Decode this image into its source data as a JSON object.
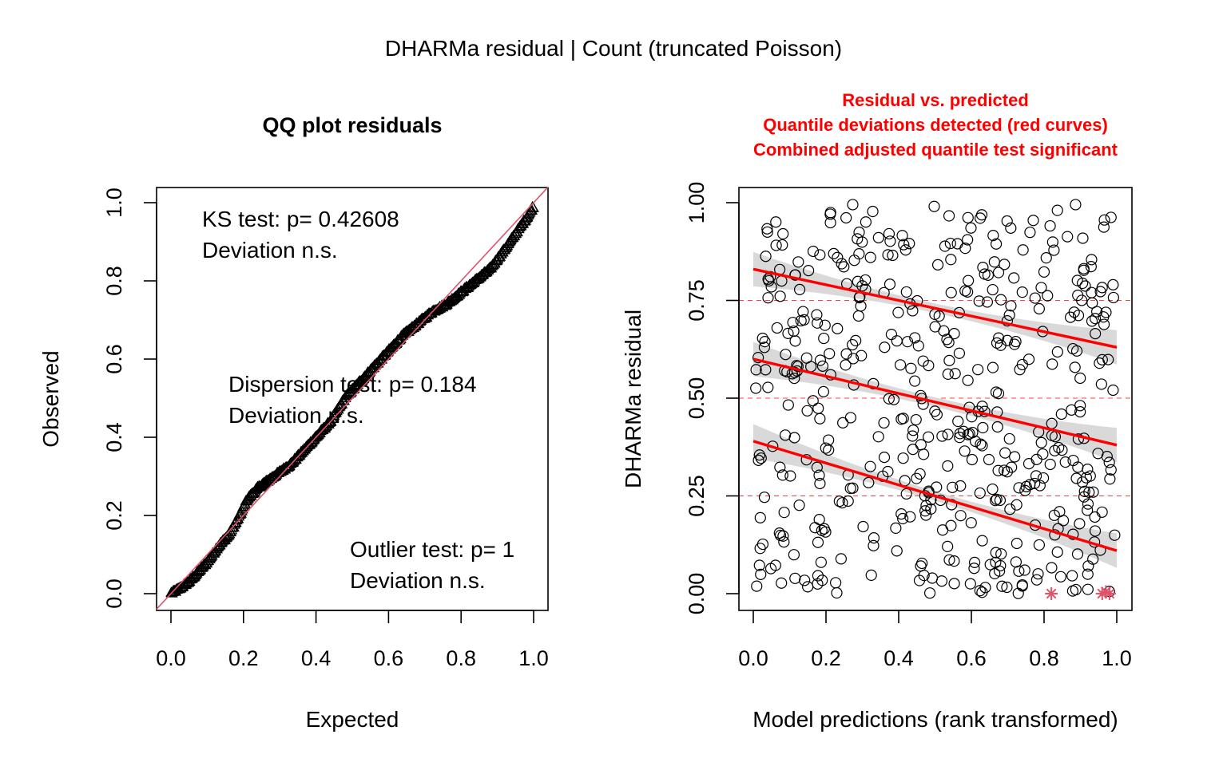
{
  "figure": {
    "title": "DHARMa residual | Count (truncated Poisson)"
  },
  "chart_data": [
    {
      "type": "scatter",
      "title": "QQ plot residuals",
      "xlabel": "Expected",
      "ylabel": "Observed",
      "xlim": [
        0,
        1
      ],
      "ylim": [
        0,
        1
      ],
      "xticks": [
        "0.0",
        "0.2",
        "0.4",
        "0.6",
        "0.8",
        "1.0"
      ],
      "yticks": [
        "0.0",
        "0.2",
        "0.4",
        "0.6",
        "0.8",
        "1.0"
      ],
      "reference_line": {
        "slope": 1,
        "intercept": 0,
        "color": "#df536b"
      },
      "point_marker": "triangle",
      "n_points": 500,
      "qq_curve": [
        [
          0.0,
          0.0
        ],
        [
          0.02,
          0.01
        ],
        [
          0.05,
          0.03
        ],
        [
          0.08,
          0.06
        ],
        [
          0.1,
          0.08
        ],
        [
          0.13,
          0.12
        ],
        [
          0.16,
          0.15
        ],
        [
          0.19,
          0.2
        ],
        [
          0.21,
          0.24
        ],
        [
          0.24,
          0.27
        ],
        [
          0.27,
          0.29
        ],
        [
          0.3,
          0.31
        ],
        [
          0.33,
          0.33
        ],
        [
          0.36,
          0.36
        ],
        [
          0.4,
          0.4
        ],
        [
          0.44,
          0.44
        ],
        [
          0.48,
          0.5
        ],
        [
          0.52,
          0.54
        ],
        [
          0.56,
          0.58
        ],
        [
          0.6,
          0.62
        ],
        [
          0.64,
          0.66
        ],
        [
          0.68,
          0.69
        ],
        [
          0.72,
          0.72
        ],
        [
          0.76,
          0.74
        ],
        [
          0.8,
          0.77
        ],
        [
          0.84,
          0.8
        ],
        [
          0.88,
          0.83
        ],
        [
          0.92,
          0.88
        ],
        [
          0.95,
          0.92
        ],
        [
          0.98,
          0.96
        ],
        [
          1.0,
          0.99
        ]
      ],
      "annotations": {
        "ks_line1": "KS test: p= 0.42608",
        "ks_line2": "Deviation  n.s.",
        "disp_line1": "Dispersion test: p= 0.184",
        "disp_line2": "Deviation  n.s.",
        "out_line1": "Outlier test: p= 1",
        "out_line2": "Deviation  n.s."
      }
    },
    {
      "type": "scatter",
      "title_lines": [
        "Residual vs. predicted",
        "Quantile deviations detected (red curves)",
        "Combined adjusted quantile test significant"
      ],
      "title_color": "#ff0000",
      "xlabel": "Model predictions (rank transformed)",
      "ylabel": "DHARMa residual",
      "xlim": [
        0,
        1
      ],
      "ylim": [
        0,
        1
      ],
      "xticks": [
        "0.0",
        "0.2",
        "0.4",
        "0.6",
        "0.8",
        "1.0"
      ],
      "yticks": [
        "0.00",
        "0.25",
        "0.50",
        "0.75",
        "1.00"
      ],
      "reference_lines": [
        0.25,
        0.5,
        0.75
      ],
      "quantile_curves": [
        {
          "quantile": 0.25,
          "x": [
            0,
            1
          ],
          "y": [
            0.39,
            0.11
          ],
          "color": "#ff0000"
        },
        {
          "quantile": 0.5,
          "x": [
            0,
            1
          ],
          "y": [
            0.6,
            0.38
          ],
          "color": "#ff0000"
        },
        {
          "quantile": 0.75,
          "x": [
            0,
            1
          ],
          "y": [
            0.83,
            0.63
          ],
          "color": "#ff0000"
        }
      ],
      "outliers": [
        {
          "x": 0.82,
          "y": 0.0
        },
        {
          "x": 0.96,
          "y": 0.0
        },
        {
          "x": 0.97,
          "y": 0.005
        },
        {
          "x": 0.98,
          "y": 0.0
        }
      ],
      "outlier_color": "#df536b",
      "n_points": 500
    }
  ]
}
